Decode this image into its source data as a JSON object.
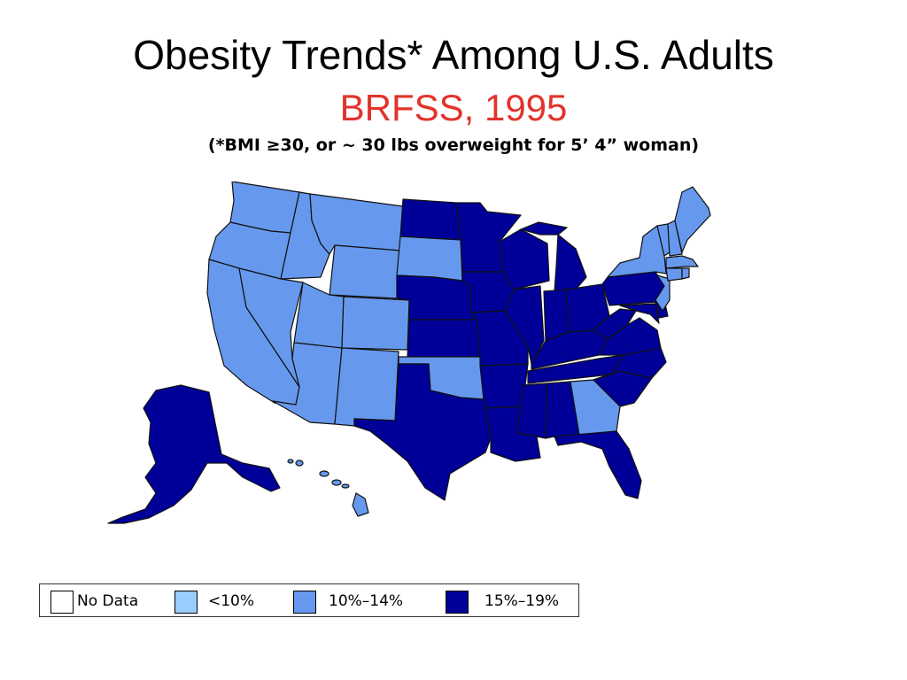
{
  "title": "Obesity Trends* Among U.S. Adults",
  "subtitle": "BRFSS, 1995",
  "footnote": "(*BMI ≥30, or ~ 30 lbs overweight for 5’ 4” woman)",
  "colors": {
    "no_data": "#ffffff",
    "lt10": "#99ccff",
    "c10_14": "#6699ee",
    "c15_19": "#000099",
    "subtitle": "#e2332b"
  },
  "legend": [
    {
      "key": "no_data",
      "label": "No Data",
      "color": "#ffffff"
    },
    {
      "key": "lt10",
      "label": "<10%",
      "color": "#99ccff"
    },
    {
      "key": "c10_14",
      "label": "10%–14%",
      "color": "#6699ee"
    },
    {
      "key": "c15_19",
      "label": "15%–19%",
      "color": "#000099"
    }
  ],
  "states": {
    "WA": "10-14",
    "OR": "10-14",
    "CA": "10-14",
    "ID": "10-14",
    "NV": "10-14",
    "MT": "10-14",
    "WY": "10-14",
    "UT": "10-14",
    "CO": "10-14",
    "AZ": "10-14",
    "NM": "10-14",
    "SD": "10-14",
    "OK": "10-14",
    "GA": "10-14",
    "HI": "10-14",
    "ME": "10-14",
    "NH": "10-14",
    "VT": "10-14",
    "NY": "10-14",
    "MA": "10-14",
    "CT": "10-14",
    "RI": "10-14",
    "NJ": "10-14",
    "ND": "15-19",
    "NE": "15-19",
    "KS": "15-19",
    "TX": "15-19",
    "MN": "15-19",
    "IA": "15-19",
    "MO": "15-19",
    "AR": "15-19",
    "LA": "15-19",
    "WI": "15-19",
    "IL": "15-19",
    "MI": "15-19",
    "IN": "15-19",
    "OH": "15-19",
    "KY": "15-19",
    "TN": "15-19",
    "MS": "15-19",
    "AL": "15-19",
    "FL": "15-19",
    "SC": "15-19",
    "NC": "15-19",
    "VA": "15-19",
    "WV": "15-19",
    "PA": "15-19",
    "MD": "15-19",
    "DE": "15-19",
    "AK": "15-19"
  }
}
